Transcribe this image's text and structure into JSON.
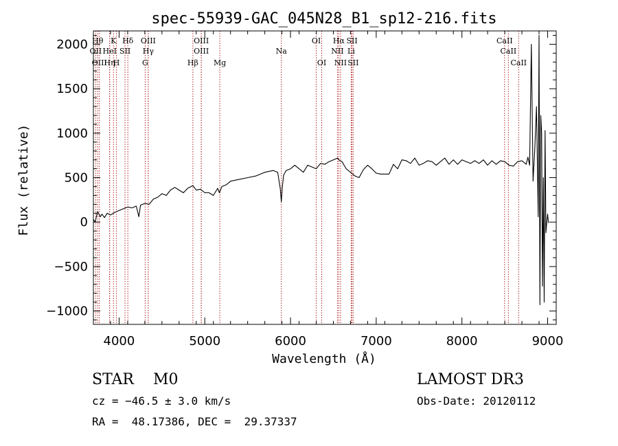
{
  "chart_data": {
    "type": "line",
    "title": "spec-55939-GAC_045N28_B1_sp12-216.fits",
    "xlabel": "Wavelength (Å)",
    "ylabel": "Flux (relative)",
    "xlim": [
      3700,
      9100
    ],
    "ylim": [
      -1150,
      2150
    ],
    "xticks": [
      4000,
      5000,
      6000,
      7000,
      8000,
      9000
    ],
    "yticks": [
      -1000,
      -500,
      0,
      500,
      1000,
      1500,
      2000
    ],
    "xtick_labels": [
      "4000",
      "5000",
      "6000",
      "7000",
      "8000",
      "9000"
    ],
    "ytick_labels": [
      "−1000",
      "−500",
      "0",
      "500",
      "1000",
      "1500",
      "2000"
    ],
    "grid": false,
    "series": [
      {
        "x": [
          3700,
          3720,
          3750,
          3780,
          3800,
          3830,
          3860,
          3900,
          3950,
          4000,
          4050,
          4100,
          4150,
          4200,
          4230,
          4250,
          4300,
          4350,
          4400,
          4450,
          4500,
          4550,
          4600,
          4650,
          4700,
          4750,
          4800,
          4860,
          4900,
          4950,
          5000,
          5050,
          5100,
          5150,
          5170,
          5200,
          5250,
          5300,
          5400,
          5500,
          5600,
          5700,
          5800,
          5850,
          5880,
          5893,
          5905,
          5920,
          5950,
          6000,
          6050,
          6100,
          6150,
          6200,
          6250,
          6300,
          6350,
          6400,
          6450,
          6500,
          6550,
          6564,
          6600,
          6650,
          6700,
          6750,
          6800,
          6850,
          6900,
          6950,
          7000,
          7050,
          7100,
          7150,
          7200,
          7250,
          7300,
          7350,
          7400,
          7450,
          7500,
          7550,
          7600,
          7650,
          7700,
          7750,
          7800,
          7850,
          7900,
          7950,
          8000,
          8050,
          8100,
          8150,
          8200,
          8250,
          8300,
          8350,
          8400,
          8450,
          8500,
          8550,
          8600,
          8650,
          8700,
          8750,
          8770,
          8790,
          8810,
          8830,
          8850,
          8870,
          8890,
          8900,
          8910,
          8920,
          8930,
          8940,
          8950,
          8960,
          8970,
          8980,
          8990,
          9000,
          9010
        ],
        "y": [
          30,
          0,
          120,
          60,
          90,
          50,
          100,
          80,
          110,
          130,
          150,
          170,
          160,
          180,
          60,
          190,
          210,
          200,
          260,
          280,
          320,
          300,
          360,
          390,
          360,
          330,
          380,
          410,
          360,
          370,
          330,
          330,
          300,
          380,
          330,
          400,
          420,
          460,
          480,
          500,
          520,
          560,
          580,
          560,
          380,
          230,
          400,
          530,
          580,
          600,
          640,
          600,
          560,
          640,
          620,
          600,
          660,
          650,
          680,
          700,
          720,
          700,
          680,
          600,
          560,
          520,
          500,
          590,
          640,
          600,
          550,
          540,
          540,
          540,
          650,
          600,
          700,
          690,
          660,
          720,
          640,
          660,
          690,
          680,
          640,
          680,
          720,
          650,
          700,
          650,
          700,
          680,
          660,
          690,
          660,
          700,
          640,
          690,
          650,
          690,
          680,
          640,
          630,
          680,
          690,
          650,
          730,
          640,
          2000,
          460,
          820,
          1300,
          60,
          2100,
          -930,
          1200,
          1000,
          -720,
          500,
          -900,
          1030,
          -120,
          0,
          90,
          -10
        ],
        "color": "#000000"
      }
    ],
    "line_markers": [
      {
        "wl": 3750,
        "label": "Hθ",
        "row": 1
      },
      {
        "wl": 3727,
        "label": "OII",
        "row": 2
      },
      {
        "wl": 3770,
        "label": "OIII",
        "row": 3
      },
      {
        "wl": 3889,
        "label": "Hη",
        "row": 3
      },
      {
        "wl": 3934,
        "label": "K",
        "row": 1
      },
      {
        "wl": 3890,
        "label": "HeI",
        "row": 2
      },
      {
        "wl": 3969,
        "label": "H",
        "row": 3
      },
      {
        "wl": 4102,
        "label": "Hδ",
        "row": 1
      },
      {
        "wl": 4069,
        "label": "SII",
        "row": 2
      },
      {
        "wl": 4340,
        "label": "OIII",
        "row": 1
      },
      {
        "wl": 4340,
        "label": "Hγ",
        "row": 2
      },
      {
        "wl": 4304,
        "label": "G",
        "row": 3
      },
      {
        "wl": 4861,
        "label": "Hβ",
        "row": 3
      },
      {
        "wl": 4959,
        "label": "OIII",
        "row": 1
      },
      {
        "wl": 4959,
        "label": "OIII",
        "row": 2
      },
      {
        "wl": 5175,
        "label": "Mg",
        "row": 3
      },
      {
        "wl": 5893,
        "label": "Na",
        "row": 2
      },
      {
        "wl": 6300,
        "label": "OI",
        "row": 1
      },
      {
        "wl": 6364,
        "label": "OI",
        "row": 3
      },
      {
        "wl": 6563,
        "label": "Hα",
        "row": 1
      },
      {
        "wl": 6548,
        "label": "NII",
        "row": 2
      },
      {
        "wl": 6584,
        "label": "NII",
        "row": 3
      },
      {
        "wl": 6717,
        "label": "SII",
        "row": 1
      },
      {
        "wl": 6708,
        "label": "Li",
        "row": 2
      },
      {
        "wl": 6731,
        "label": "SII",
        "row": 3
      },
      {
        "wl": 8498,
        "label": "CaII",
        "row": 1
      },
      {
        "wl": 8542,
        "label": "CaII",
        "row": 2
      },
      {
        "wl": 8662,
        "label": "CaII",
        "row": 3
      }
    ],
    "marker_color": "#b22222"
  },
  "info": {
    "class_line": "STAR    M0",
    "survey": "LAMOST DR3",
    "cz_line": "cz = −46.5 ± 3.0 km/s",
    "obs_date": "Obs-Date: 20120112",
    "radec_line": "RA =  48.17386, DEC =  29.37337"
  }
}
